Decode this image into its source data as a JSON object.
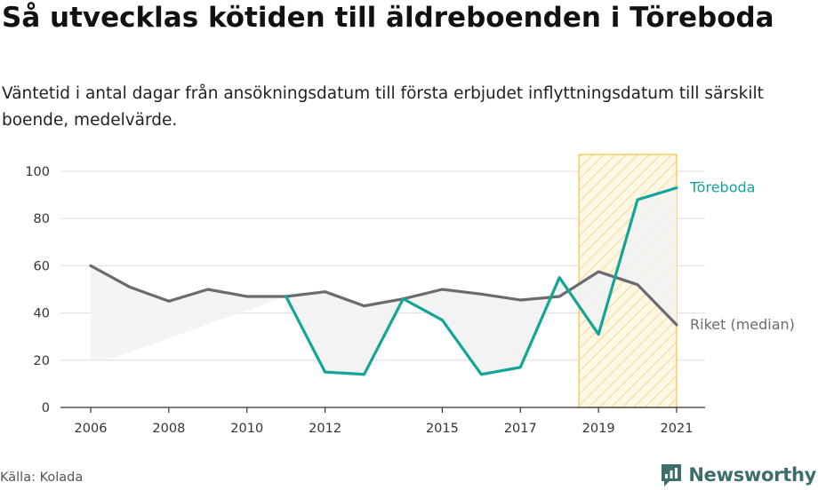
{
  "header": {
    "title": "Så utvecklas kötiden till äldreboenden i Töreboda",
    "subtitle": "Väntetid i antal dagar från ansökningsdatum till första erbjudet inflyttningsdatum till särskilt boende, medelvärde."
  },
  "footer": {
    "source": "Källa: Kolada",
    "brand": "Newsworthy"
  },
  "colors": {
    "local": "#13a596",
    "national": "#6b6a70",
    "highlight": "#f5cc6a",
    "fill": "#f2f2f2"
  },
  "chart_data": {
    "type": "line",
    "x_ticks": [
      2006,
      2008,
      2010,
      2012,
      2015,
      2017,
      2019,
      2021
    ],
    "y_ticks": [
      0,
      20,
      40,
      60,
      80,
      100
    ],
    "xlim": [
      2006,
      2021
    ],
    "ylim": [
      0,
      100
    ],
    "grid": true,
    "highlight_range": [
      2018.5,
      2021
    ],
    "series": [
      {
        "name": "Töreboda",
        "color": "#13a596",
        "x": [
          2011,
          2012,
          2013,
          2014,
          2015,
          2016,
          2017,
          2018,
          2019,
          2020,
          2021
        ],
        "values": [
          47,
          15,
          14,
          46,
          37,
          14,
          17,
          55,
          31,
          88,
          93
        ]
      },
      {
        "name": "Riket (median)",
        "color": "#6b6a70",
        "x": [
          2006,
          2007,
          2008,
          2009,
          2010,
          2011,
          2012,
          2013,
          2014,
          2015,
          2016,
          2017,
          2018,
          2019,
          2020,
          2021
        ],
        "values": [
          60,
          51,
          45,
          50,
          47,
          47,
          49,
          43,
          46,
          50,
          48,
          45.5,
          47,
          57.5,
          52,
          35
        ]
      }
    ]
  }
}
